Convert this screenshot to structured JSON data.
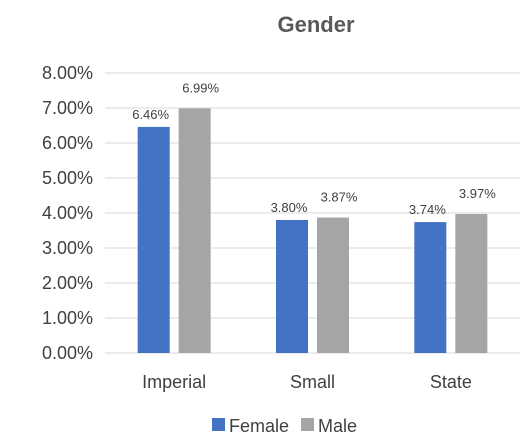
{
  "chart_data": {
    "type": "bar",
    "title": "Gender",
    "categories": [
      "Imperial",
      "Small",
      "State"
    ],
    "series": [
      {
        "name": "Female",
        "values": [
          6.46,
          3.8,
          3.74
        ],
        "labels": [
          "6.46%",
          "3.80%",
          "3.74%"
        ],
        "color": "#4472C4"
      },
      {
        "name": "Male",
        "values": [
          6.99,
          3.87,
          3.97
        ],
        "labels": [
          "6.99%",
          "3.87%",
          "3.97%"
        ],
        "color": "#A5A5A5"
      }
    ],
    "ylim": [
      0,
      8
    ],
    "yticks": [
      0,
      1,
      2,
      3,
      4,
      5,
      6,
      7,
      8
    ],
    "ytick_labels": [
      "0.00%",
      "1.00%",
      "2.00%",
      "3.00%",
      "4.00%",
      "5.00%",
      "6.00%",
      "7.00%",
      "8.00%"
    ],
    "grid": true,
    "gridline_color": "#D9D9D9",
    "legend_position": "bottom"
  }
}
